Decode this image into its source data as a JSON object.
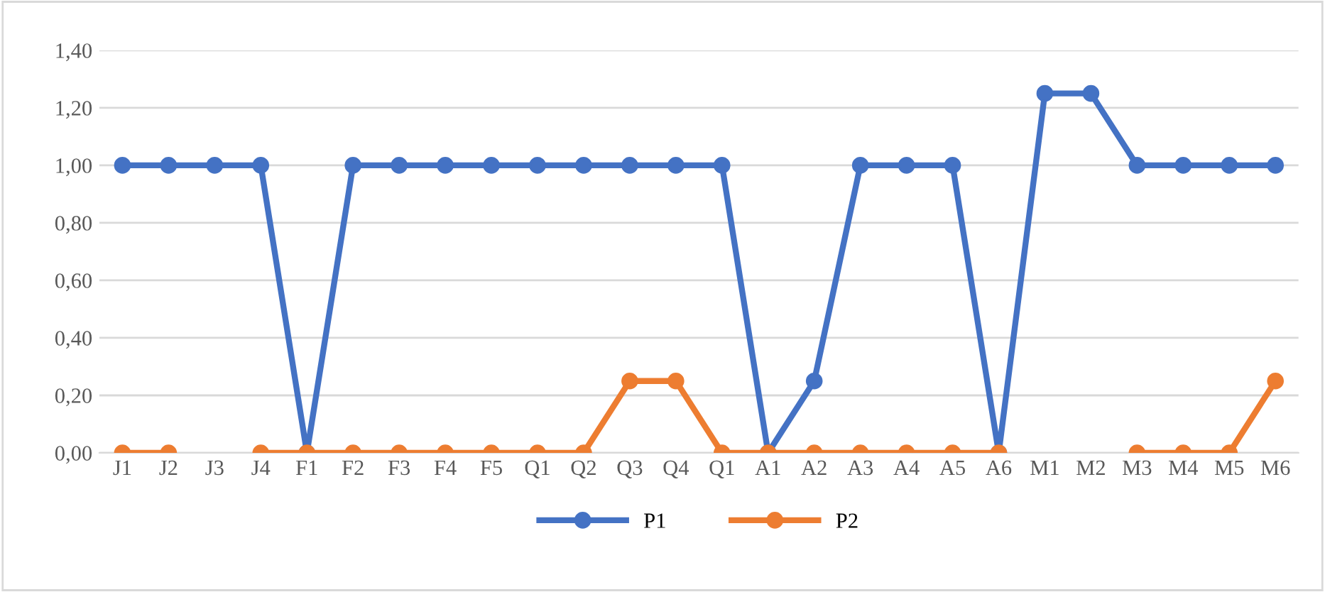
{
  "chart_data": {
    "type": "line",
    "categories": [
      "J1",
      "J2",
      "J3",
      "J4",
      "F1",
      "F2",
      "F3",
      "F4",
      "F5",
      "Q1",
      "Q2",
      "Q3",
      "Q4",
      "Q1",
      "A1",
      "A2",
      "A3",
      "A4",
      "A5",
      "A6",
      "M1",
      "M2",
      "M3",
      "M4",
      "M5",
      "M6"
    ],
    "series": [
      {
        "name": "P1",
        "color": "#4472c4",
        "values": [
          1,
          1,
          1,
          1,
          0,
          1,
          1,
          1,
          1,
          1,
          1,
          1,
          1,
          1,
          0,
          0.25,
          1,
          1,
          1,
          0,
          1.25,
          1.25,
          1,
          1,
          1,
          1
        ]
      },
      {
        "name": "P2",
        "color": "#ed7d31",
        "values": [
          0,
          0,
          null,
          0,
          0,
          0,
          0,
          0,
          0,
          0,
          0,
          0.25,
          0.25,
          0,
          0,
          0,
          0,
          0,
          0,
          0,
          null,
          null,
          0,
          0,
          0,
          0.25
        ]
      }
    ],
    "ylim": [
      0,
      1.4
    ],
    "yticks": [
      {
        "value": 0,
        "label": "0,00"
      },
      {
        "value": 0.2,
        "label": "0,20"
      },
      {
        "value": 0.4,
        "label": "0,40"
      },
      {
        "value": 0.6,
        "label": "0,60"
      },
      {
        "value": 0.8,
        "label": "0,80"
      },
      {
        "value": 1.0,
        "label": "1,00"
      },
      {
        "value": 1.2,
        "label": "1,20"
      },
      {
        "value": 1.4,
        "label": "1,40"
      }
    ],
    "grid": "y",
    "legend": "bottom",
    "marker": "circle",
    "line_style": "solid"
  }
}
